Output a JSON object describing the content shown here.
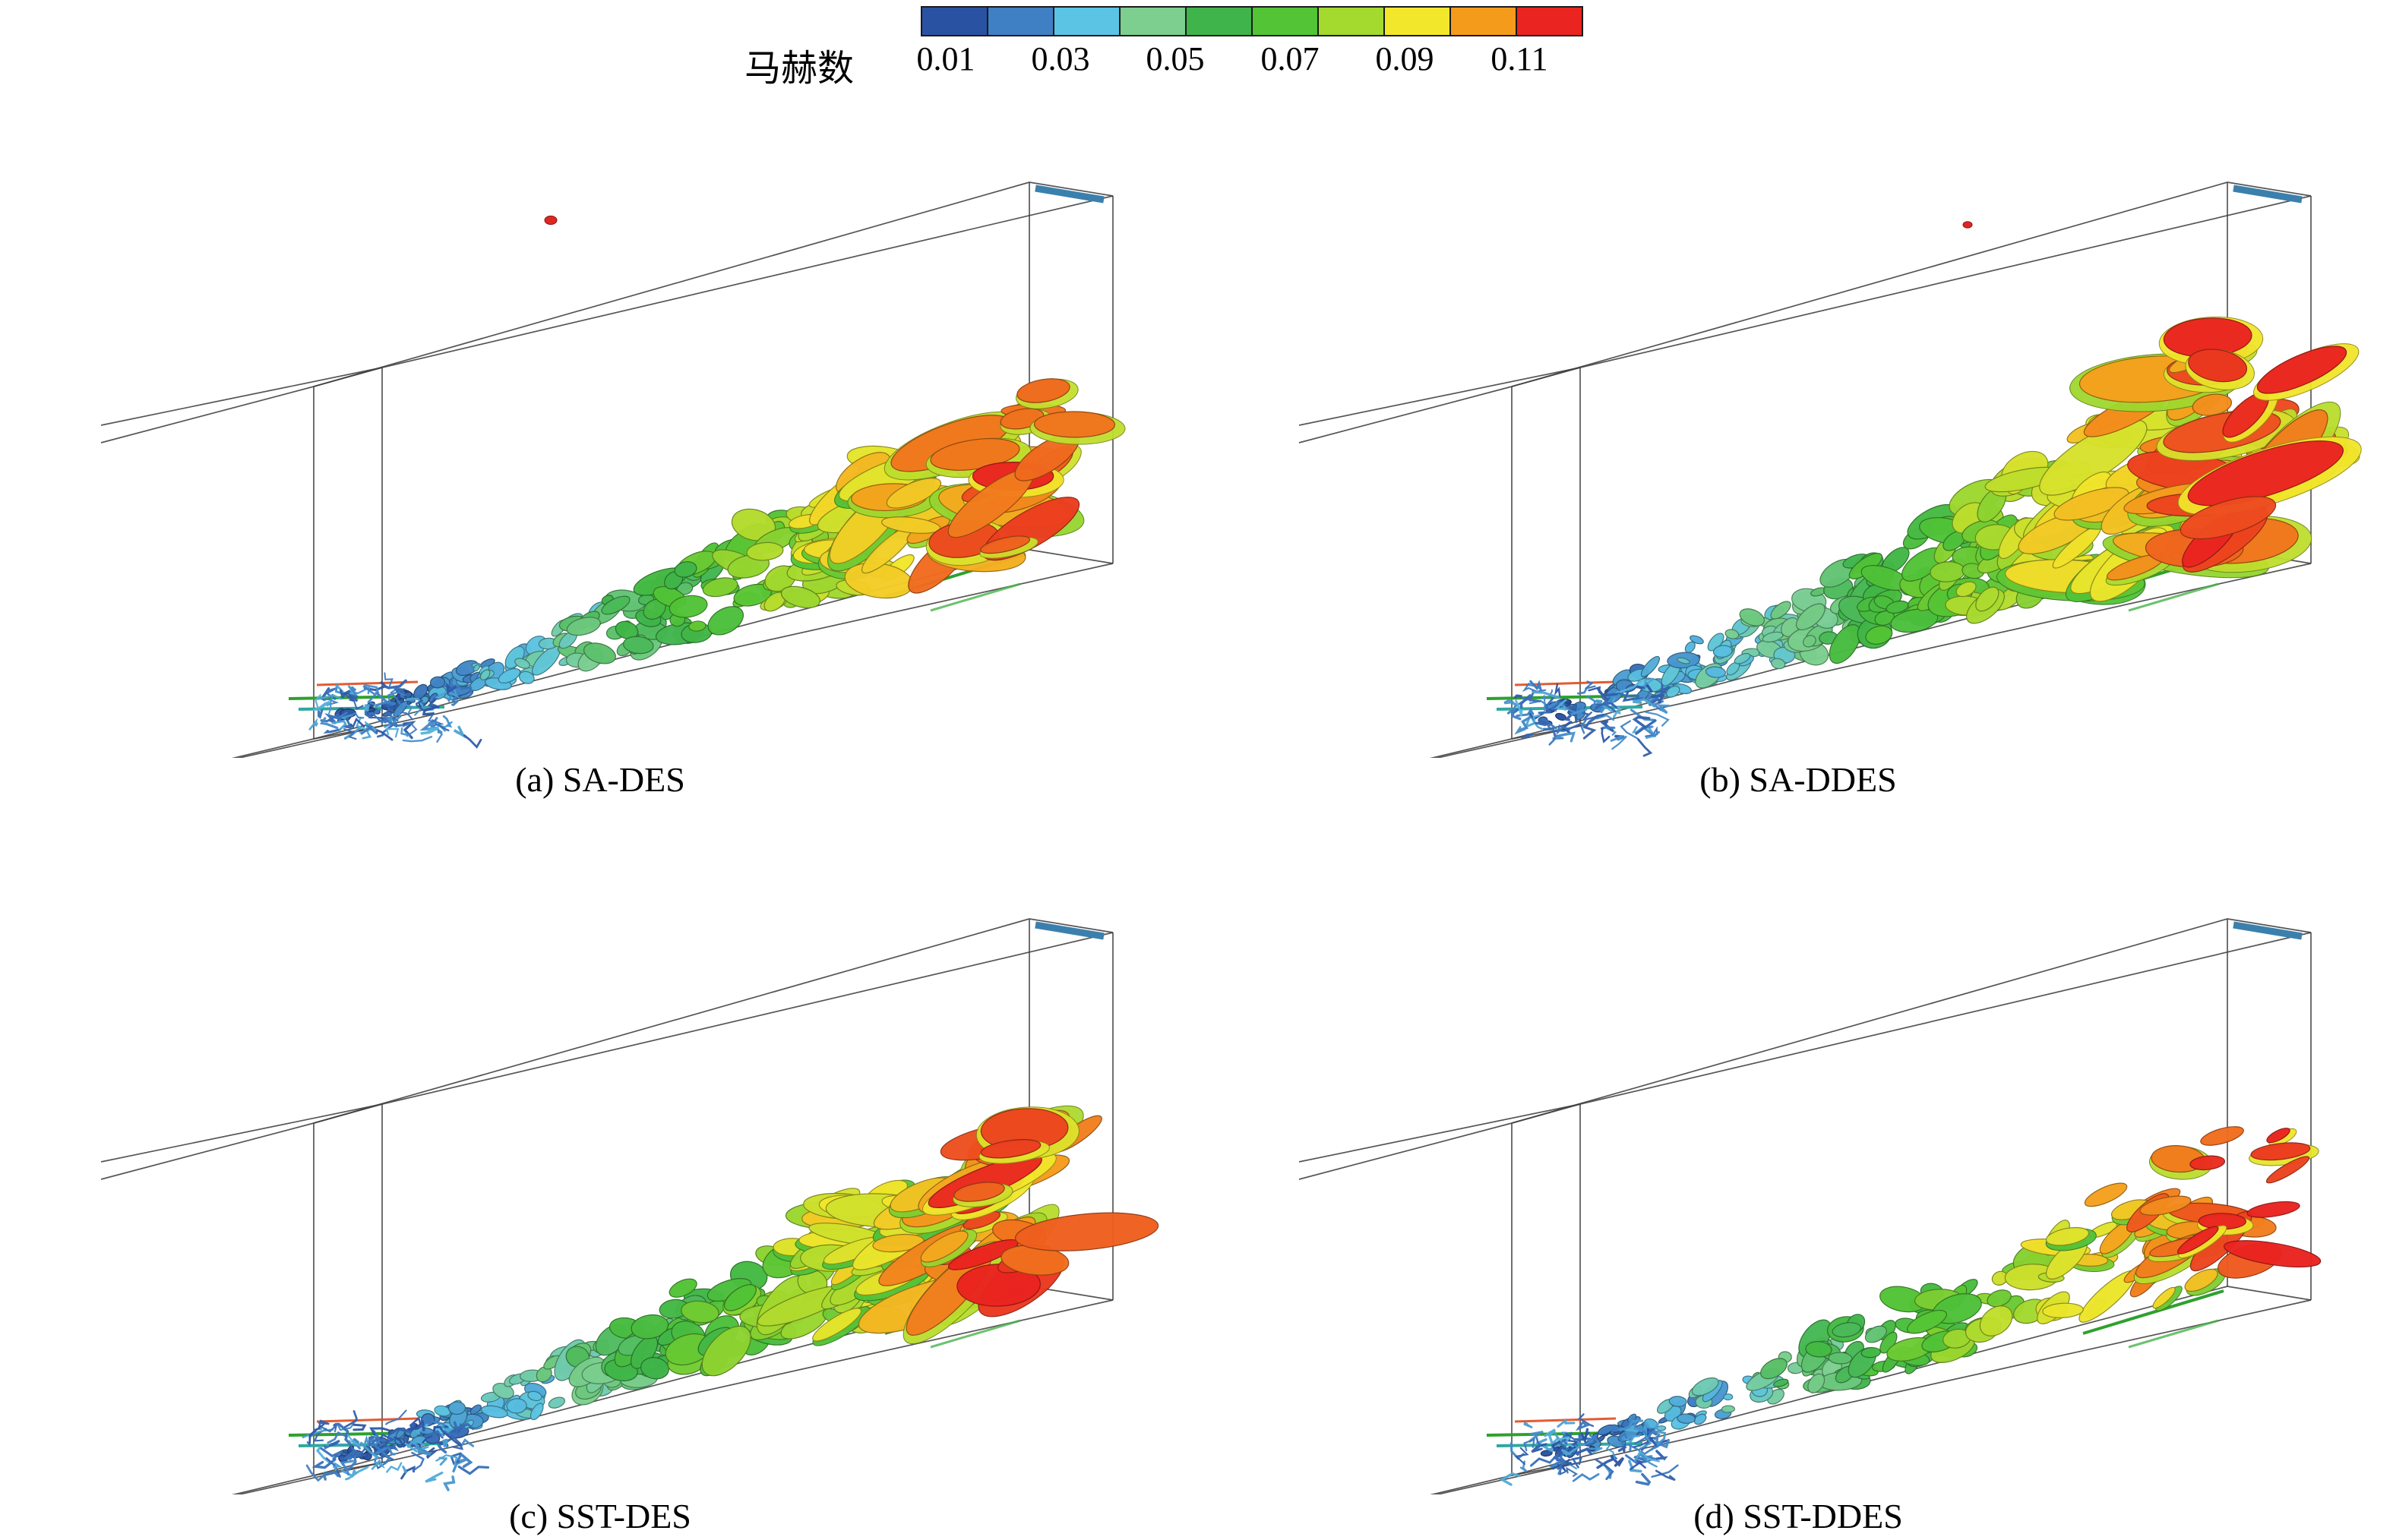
{
  "legend": {
    "label": "马赫数",
    "ticks": [
      "0.01",
      "0.03",
      "0.05",
      "0.07",
      "0.09",
      "0.11"
    ],
    "colors": [
      "#2a52a2",
      "#3f7fc4",
      "#5bc4e4",
      "#7ccf8f",
      "#3eb44a",
      "#52c435",
      "#a4d92e",
      "#f2e72b",
      "#f59b1c",
      "#ea2420"
    ],
    "wireframe_color": "#3f3f3f",
    "marker_color": "#3b80ad",
    "sheet_color": "#2ea12e"
  },
  "panels": [
    {
      "caption": "(a) SA-DES"
    },
    {
      "caption": "(b) SA-DDES"
    },
    {
      "caption": "(c) SST-DES"
    },
    {
      "caption": "(d) SST-DDES"
    }
  ]
}
